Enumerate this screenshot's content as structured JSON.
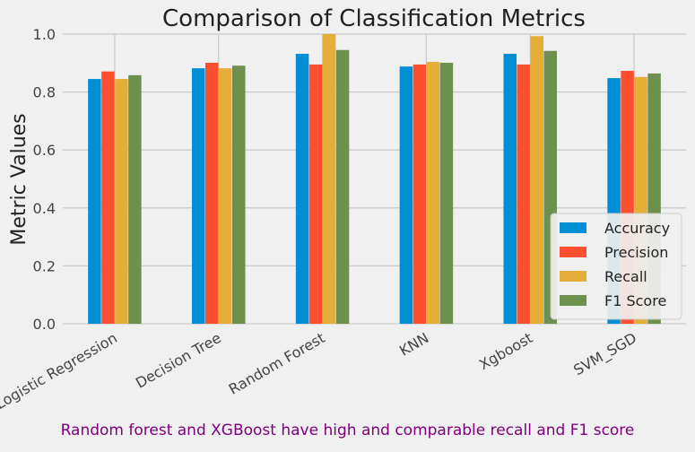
{
  "chart_data": {
    "type": "bar",
    "title": "Comparison of Classification Metrics",
    "xlabel": "",
    "ylabel": "Metric Values",
    "ylim": [
      0,
      1.0
    ],
    "yticks": [
      "0.0",
      "0.2",
      "0.4",
      "0.6",
      "0.8",
      "1.0"
    ],
    "grid": true,
    "legend_position": "lower-right",
    "categories": [
      "Logistic Regression",
      "Decision Tree",
      "Random Forest",
      "KNN",
      "Xgboost",
      "SVM_SGD"
    ],
    "series": [
      {
        "name": "Accuracy",
        "color": "#008fd5",
        "values": [
          0.845,
          0.882,
          0.932,
          0.888,
          0.932,
          0.848
        ]
      },
      {
        "name": "Precision",
        "color": "#fc4f30",
        "values": [
          0.871,
          0.901,
          0.895,
          0.895,
          0.895,
          0.873
        ]
      },
      {
        "name": "Recall",
        "color": "#e5ae38",
        "values": [
          0.845,
          0.882,
          1.0,
          0.904,
          0.993,
          0.852
        ]
      },
      {
        "name": "F1 Score",
        "color": "#6d904f",
        "values": [
          0.858,
          0.891,
          0.945,
          0.901,
          0.942,
          0.864
        ]
      }
    ],
    "annotation": {
      "text": "Random forest and XGBoost have high and comparable recall and F1 score",
      "color": "#800080"
    }
  }
}
